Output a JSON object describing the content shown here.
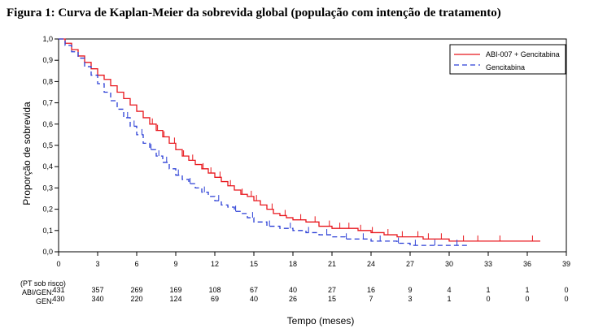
{
  "figure_title": "Figura 1: Curva de Kaplan-Meier da sobrevida global (população com intenção de tratamento)",
  "chart_data": {
    "type": "line",
    "title": "Figura 1: Curva de Kaplan-Meier da sobrevida global (população com intenção de tratamento)",
    "xlabel": "Tempo (meses)",
    "ylabel": "Proporção de sobrevida",
    "xlim": [
      0,
      39
    ],
    "ylim": [
      0,
      1
    ],
    "x_ticks": [
      "0",
      "3",
      "6",
      "9",
      "12",
      "15",
      "18",
      "21",
      "24",
      "27",
      "30",
      "33",
      "36",
      "39"
    ],
    "y_ticks": [
      "0,0",
      "0,1",
      "0,2",
      "0,3",
      "0,4",
      "0,5",
      "0,6",
      "0,7",
      "0,8",
      "0,9",
      "1,0"
    ],
    "grid": false,
    "legend_position": "top-right",
    "series": [
      {
        "name": "ABI-007 + Gencitabina",
        "color": "#e8161c",
        "dash": "solid",
        "points": [
          [
            0,
            1.0
          ],
          [
            0.5,
            0.98
          ],
          [
            1,
            0.95
          ],
          [
            1.5,
            0.92
          ],
          [
            2,
            0.89
          ],
          [
            2.5,
            0.86
          ],
          [
            3,
            0.83
          ],
          [
            3.5,
            0.81
          ],
          [
            4,
            0.78
          ],
          [
            4.5,
            0.75
          ],
          [
            5,
            0.72
          ],
          [
            5.5,
            0.69
          ],
          [
            6,
            0.66
          ],
          [
            6.5,
            0.63
          ],
          [
            7,
            0.6
          ],
          [
            7.5,
            0.57
          ],
          [
            8,
            0.54
          ],
          [
            8.5,
            0.51
          ],
          [
            9,
            0.48
          ],
          [
            9.5,
            0.45
          ],
          [
            10,
            0.43
          ],
          [
            10.5,
            0.41
          ],
          [
            11,
            0.39
          ],
          [
            11.5,
            0.37
          ],
          [
            12,
            0.35
          ],
          [
            12.5,
            0.33
          ],
          [
            13,
            0.31
          ],
          [
            13.5,
            0.29
          ],
          [
            14,
            0.27
          ],
          [
            14.5,
            0.26
          ],
          [
            15,
            0.24
          ],
          [
            15.5,
            0.22
          ],
          [
            16,
            0.2
          ],
          [
            16.5,
            0.18
          ],
          [
            17,
            0.17
          ],
          [
            17.5,
            0.16
          ],
          [
            18,
            0.15
          ],
          [
            19,
            0.14
          ],
          [
            20,
            0.12
          ],
          [
            21,
            0.11
          ],
          [
            22,
            0.11
          ],
          [
            23,
            0.1
          ],
          [
            24,
            0.09
          ],
          [
            25,
            0.08
          ],
          [
            26,
            0.07
          ],
          [
            27,
            0.07
          ],
          [
            28,
            0.06
          ],
          [
            29,
            0.06
          ],
          [
            30,
            0.05
          ],
          [
            31,
            0.05
          ],
          [
            33,
            0.05
          ],
          [
            35,
            0.05
          ],
          [
            37,
            0.05
          ]
        ],
        "censor_x": [
          7.2,
          7.6,
          8.1,
          8.9,
          9.6,
          10.3,
          11.1,
          11.7,
          12.4,
          13.2,
          14.1,
          14.8,
          15.2,
          16.4,
          17.4,
          18.6,
          19.7,
          20.8,
          21.6,
          22.3,
          23.2,
          24.1,
          25.3,
          26.4,
          27.6,
          28.4,
          29.4,
          31.1,
          32.2,
          33.9,
          36.4
        ]
      },
      {
        "name": "Gencitabina",
        "color": "#2b3fd6",
        "dash": "dashed",
        "points": [
          [
            0,
            1.0
          ],
          [
            0.5,
            0.97
          ],
          [
            1,
            0.94
          ],
          [
            1.5,
            0.91
          ],
          [
            2,
            0.87
          ],
          [
            2.5,
            0.83
          ],
          [
            3,
            0.79
          ],
          [
            3.5,
            0.75
          ],
          [
            4,
            0.71
          ],
          [
            4.5,
            0.67
          ],
          [
            5,
            0.63
          ],
          [
            5.5,
            0.59
          ],
          [
            6,
            0.55
          ],
          [
            6.5,
            0.51
          ],
          [
            7,
            0.48
          ],
          [
            7.5,
            0.45
          ],
          [
            8,
            0.42
          ],
          [
            8.5,
            0.39
          ],
          [
            9,
            0.36
          ],
          [
            9.5,
            0.34
          ],
          [
            10,
            0.32
          ],
          [
            10.5,
            0.3
          ],
          [
            11,
            0.28
          ],
          [
            11.5,
            0.26
          ],
          [
            12,
            0.24
          ],
          [
            12.5,
            0.22
          ],
          [
            13,
            0.21
          ],
          [
            13.5,
            0.19
          ],
          [
            14,
            0.18
          ],
          [
            14.5,
            0.16
          ],
          [
            15,
            0.14
          ],
          [
            16,
            0.12
          ],
          [
            17,
            0.11
          ],
          [
            18,
            0.1
          ],
          [
            19,
            0.09
          ],
          [
            20,
            0.08
          ],
          [
            21,
            0.07
          ],
          [
            22,
            0.06
          ],
          [
            24,
            0.05
          ],
          [
            26,
            0.04
          ],
          [
            27,
            0.03
          ],
          [
            29,
            0.03
          ],
          [
            31.5,
            0.03
          ]
        ],
        "censor_x": [
          5.3,
          5.8,
          6.4,
          7.1,
          7.7,
          8.3,
          9.2,
          10.1,
          11.2,
          12.3,
          13.6,
          14.9,
          16.2,
          17.8,
          19.2,
          20.6,
          22.1,
          23.4,
          24.7,
          26.1,
          27.4,
          28.9,
          30.6
        ]
      }
    ],
    "risk_table": {
      "header": "(PT sob risco)",
      "times": [
        "0",
        "3",
        "6",
        "9",
        "12",
        "15",
        "18",
        "21",
        "24",
        "27",
        "30",
        "33",
        "36",
        "39"
      ],
      "rows": [
        {
          "label": "ABI/GEN:",
          "values": [
            "431",
            "357",
            "269",
            "169",
            "108",
            "67",
            "40",
            "27",
            "16",
            "9",
            "4",
            "1",
            "1",
            "0"
          ]
        },
        {
          "label": "GEN:",
          "values": [
            "430",
            "340",
            "220",
            "124",
            "69",
            "40",
            "26",
            "15",
            "7",
            "3",
            "1",
            "0",
            "0",
            "0"
          ]
        }
      ]
    }
  }
}
